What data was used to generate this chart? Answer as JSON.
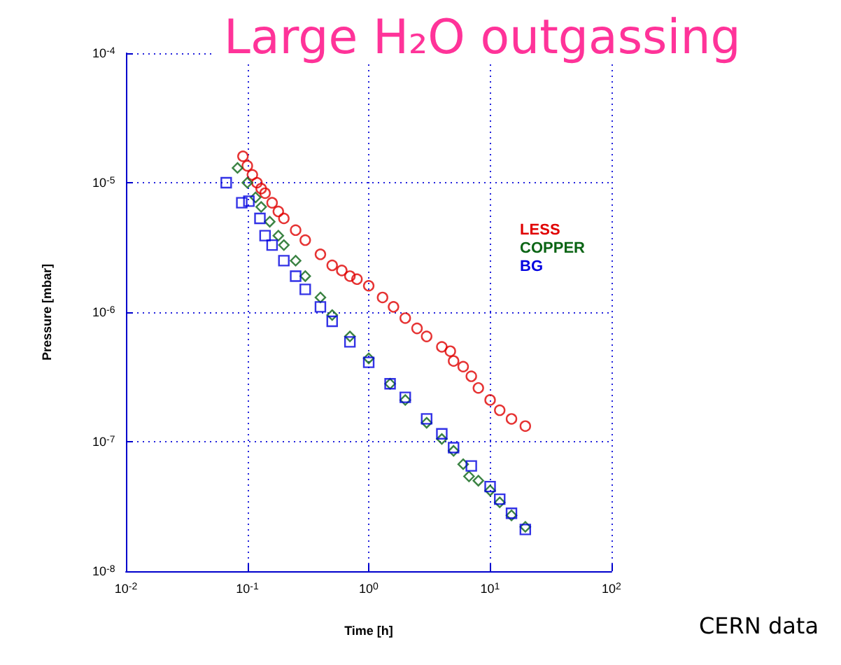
{
  "chart_data": {
    "type": "scatter",
    "title": "Large H₂O outgassing",
    "xlabel": "Time [h]",
    "ylabel": "Pressure [mbar]",
    "annotations": [
      "CERN data"
    ],
    "log": "xy",
    "grid": true,
    "legend": "top right",
    "xlim": [
      0.01,
      100
    ],
    "ylim": [
      1e-08,
      0.0001
    ],
    "xticks": [
      {
        "value": 0.01,
        "label": "10$^{-2}$"
      },
      {
        "value": 0.1,
        "label": "10$^{-1}$"
      },
      {
        "value": 1,
        "label": "10$^{0}$"
      },
      {
        "value": 10,
        "label": "10$^{1}$"
      },
      {
        "value": 100,
        "label": "10$^{2}$"
      }
    ],
    "yticks": [
      {
        "value": 1e-08,
        "label": "10$^{-8}$"
      },
      {
        "value": 1e-07,
        "label": "10$^{-7}$"
      },
      {
        "value": 1e-06,
        "label": "10$^{-6}$"
      },
      {
        "value": 1e-05,
        "label": "10$^{-5}$"
      },
      {
        "value": 0.0001,
        "label": "10$^{-4}$"
      }
    ],
    "series": [
      {
        "name": "LESS",
        "color": "#e00000",
        "marker": "circle",
        "x": [
          0.092,
          0.1,
          0.11,
          0.12,
          0.13,
          0.14,
          0.16,
          0.18,
          0.2,
          0.25,
          0.3,
          0.4,
          0.5,
          0.6,
          0.7,
          0.8,
          1,
          1.3,
          1.6,
          2,
          2.5,
          3,
          4,
          4.7,
          5,
          6,
          7,
          8,
          10,
          12,
          15,
          19.5
        ],
        "values": [
          1.6e-05,
          1.35e-05,
          1.15e-05,
          1e-05,
          9e-06,
          8.3e-06,
          7e-06,
          6e-06,
          5.3e-06,
          4.3e-06,
          3.6e-06,
          2.8e-06,
          2.3e-06,
          2.1e-06,
          1.9e-06,
          1.8e-06,
          1.6e-06,
          1.3e-06,
          1.1e-06,
          9e-07,
          7.5e-07,
          6.5e-07,
          5.4e-07,
          5e-07,
          4.2e-07,
          3.8e-07,
          3.2e-07,
          2.6e-07,
          2.1e-07,
          1.75e-07,
          1.5e-07,
          1.32e-07
        ]
      },
      {
        "name": "COPPER",
        "color": "#0a6414",
        "marker": "diamond",
        "x": [
          0.083,
          0.1,
          0.117,
          0.13,
          0.153,
          0.18,
          0.2,
          0.25,
          0.3,
          0.4,
          0.5,
          0.7,
          1,
          1.5,
          2,
          3,
          4,
          5,
          6,
          6.7,
          8,
          10,
          12,
          15,
          19.5
        ],
        "values": [
          1.3e-05,
          1e-05,
          7.7e-06,
          6.5e-06,
          5e-06,
          3.9e-06,
          3.3e-06,
          2.5e-06,
          1.9e-06,
          1.3e-06,
          9.5e-07,
          6.5e-07,
          4.4e-07,
          2.8e-07,
          2.1e-07,
          1.4e-07,
          1.05e-07,
          8.5e-08,
          6.7e-08,
          5.4e-08,
          5e-08,
          4.2e-08,
          3.4e-08,
          2.7e-08,
          2.2e-08
        ]
      },
      {
        "name": "BG",
        "color": "#0000e0",
        "marker": "square",
        "x": [
          0.067,
          0.09,
          0.103,
          0.127,
          0.14,
          0.16,
          0.2,
          0.25,
          0.3,
          0.4,
          0.5,
          0.7,
          1,
          1.5,
          2,
          3,
          4,
          5,
          7,
          10,
          12,
          15,
          19.5
        ],
        "values": [
          1e-05,
          7e-06,
          7.2e-06,
          5.3e-06,
          3.9e-06,
          3.3e-06,
          2.5e-06,
          1.9e-06,
          1.5e-06,
          1.1e-06,
          8.5e-07,
          5.9e-07,
          4.1e-07,
          2.8e-07,
          2.2e-07,
          1.5e-07,
          1.15e-07,
          9e-08,
          6.5e-08,
          4.5e-08,
          3.6e-08,
          2.8e-08,
          2.1e-08
        ]
      }
    ]
  }
}
